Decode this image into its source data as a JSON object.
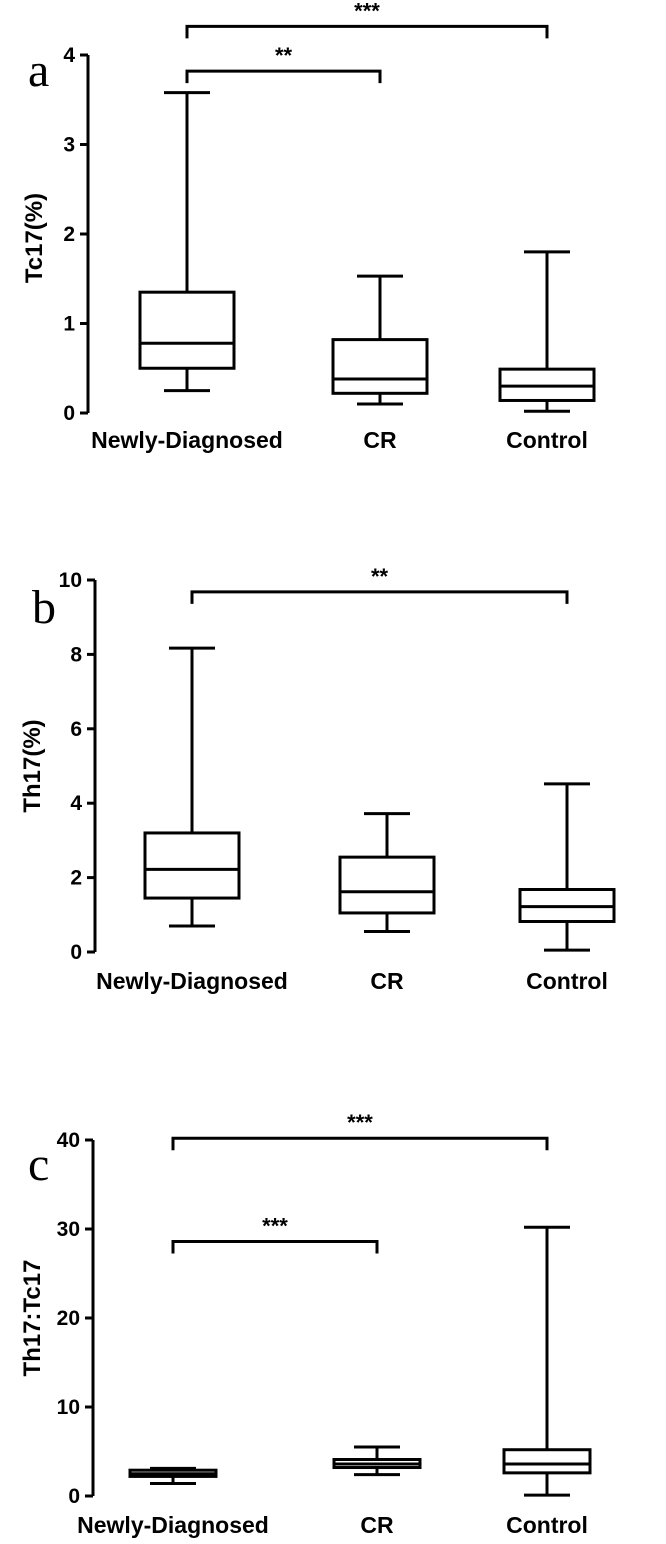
{
  "chart_data": [
    {
      "type": "box",
      "panel": "a",
      "ylabel": "Tc17(%)",
      "ylim": [
        0,
        4
      ],
      "yticks": [
        "0",
        "1",
        "2",
        "3",
        "4"
      ],
      "categories": [
        "Newly-Diagnosed",
        "CR",
        "Control"
      ],
      "boxes": [
        {
          "min": 0.25,
          "q1": 0.5,
          "median": 0.78,
          "q3": 1.35,
          "max": 3.58
        },
        {
          "min": 0.1,
          "q1": 0.22,
          "median": 0.38,
          "q3": 0.82,
          "max": 1.53
        },
        {
          "min": 0.02,
          "q1": 0.14,
          "median": 0.3,
          "q3": 0.49,
          "max": 1.8
        }
      ],
      "significance": [
        {
          "from": 0,
          "to": 2,
          "label": "***",
          "y": 4.32
        },
        {
          "from": 0,
          "to": 1,
          "label": "**",
          "y": 3.82
        }
      ]
    },
    {
      "type": "box",
      "panel": "b",
      "ylabel": "Th17(%)",
      "ylim": [
        0,
        10
      ],
      "yticks": [
        "0",
        "2",
        "4",
        "6",
        "8",
        "10"
      ],
      "categories": [
        "Newly-Diagnosed",
        "CR",
        "Control"
      ],
      "boxes": [
        {
          "min": 0.7,
          "q1": 1.45,
          "median": 2.22,
          "q3": 3.2,
          "max": 8.17
        },
        {
          "min": 0.55,
          "q1": 1.05,
          "median": 1.62,
          "q3": 2.55,
          "max": 3.72
        },
        {
          "min": 0.05,
          "q1": 0.82,
          "median": 1.22,
          "q3": 1.68,
          "max": 4.52
        }
      ],
      "significance": [
        {
          "from": 0,
          "to": 2,
          "label": "**",
          "y": 9.68
        }
      ]
    },
    {
      "type": "box",
      "panel": "c",
      "ylabel": "Th17:Tc17",
      "ylim": [
        0,
        40
      ],
      "yticks": [
        "0",
        "10",
        "20",
        "30",
        "40"
      ],
      "categories": [
        "Newly-Diagnosed",
        "CR",
        "Control"
      ],
      "boxes": [
        {
          "min": 1.4,
          "q1": 2.2,
          "median": 2.5,
          "q3": 2.9,
          "max": 3.1
        },
        {
          "min": 2.4,
          "q1": 3.2,
          "median": 3.6,
          "q3": 4.1,
          "max": 5.5
        },
        {
          "min": 0.1,
          "q1": 2.6,
          "median": 3.6,
          "q3": 5.2,
          "max": 30.2
        }
      ],
      "significance": [
        {
          "from": 0,
          "to": 2,
          "label": "***",
          "y": 40.2
        },
        {
          "from": 0,
          "to": 1,
          "label": "***",
          "y": 28.6
        }
      ]
    }
  ]
}
